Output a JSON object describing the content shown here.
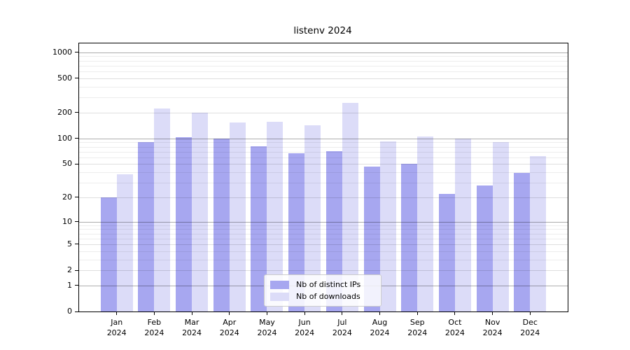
{
  "chart_data": {
    "type": "bar",
    "title": "listenv 2024",
    "categories": [
      "Jan",
      "Feb",
      "Mar",
      "Apr",
      "May",
      "Jun",
      "Jul",
      "Aug",
      "Sep",
      "Oct",
      "Nov",
      "Dec"
    ],
    "tick_year": "2024",
    "series": [
      {
        "name": "Nb of distinct IPs",
        "color": "#a7a7f0",
        "values": [
          20,
          91,
          103,
          99,
          81,
          67,
          71,
          47,
          50,
          22,
          28,
          39
        ]
      },
      {
        "name": "Nb of downloads",
        "color": "#dcdcf8",
        "values": [
          38,
          222,
          201,
          153,
          155,
          142,
          258,
          92,
          106,
          100,
          90,
          62
        ]
      }
    ],
    "yscale": "log1p",
    "ylim": [
      0,
      1270
    ],
    "yticks": [
      0,
      1,
      2,
      5,
      10,
      20,
      50,
      100,
      200,
      500,
      1000
    ],
    "grid": {
      "major": [
        1,
        10,
        100,
        1000
      ],
      "minor_labeled": [
        2,
        5,
        20,
        50,
        200,
        500
      ],
      "minor": [
        3,
        4,
        6,
        7,
        8,
        9,
        30,
        40,
        60,
        70,
        80,
        90,
        300,
        400,
        600,
        700,
        800,
        900
      ]
    },
    "grid_colors": {
      "major": "rgba(0,0,0,0.32)",
      "minor_labeled": "rgba(0,0,0,0.13)",
      "minor": "rgba(0,0,0,0.07)"
    },
    "legend_position": "inside-bottom-center",
    "grid_on": true
  }
}
